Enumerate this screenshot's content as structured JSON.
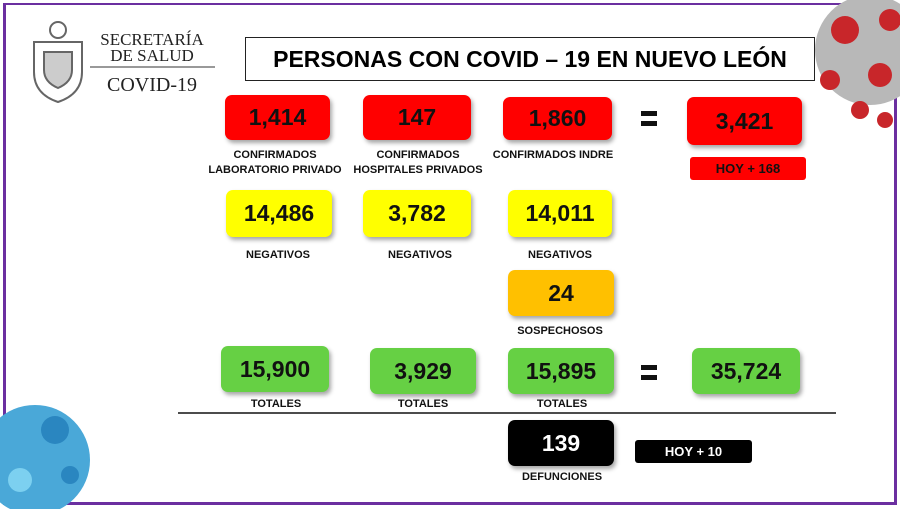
{
  "header": {
    "agency_lines": [
      "SECRETARÍA",
      "DE SALUD"
    ],
    "program": "COVID-19",
    "title": "PERSONAS CON COVID – 19 EN NUEVO LEÓN"
  },
  "confirmed": [
    {
      "value": "1,414",
      "label": [
        "CONFIRMADOS",
        "LABORATORIO PRIVADO"
      ]
    },
    {
      "value": "147",
      "label": [
        "CONFIRMADOS",
        "HOSPITALES PRIVADOS"
      ]
    },
    {
      "value": "1,860",
      "label": [
        "CONFIRMADOS INDRE"
      ]
    }
  ],
  "confirmed_total": {
    "value": "3,421",
    "today": "HOY + 168"
  },
  "negatives": [
    {
      "value": "14,486",
      "label": "NEGATIVOS"
    },
    {
      "value": "3,782",
      "label": "NEGATIVOS"
    },
    {
      "value": "14,011",
      "label": "NEGATIVOS"
    }
  ],
  "suspects": {
    "value": "24",
    "label": "SOSPECHOSOS"
  },
  "totals": [
    {
      "value": "15,900",
      "label": "TOTALES"
    },
    {
      "value": "3,929",
      "label": "TOTALES"
    },
    {
      "value": "15,895",
      "label": "TOTALES"
    }
  ],
  "totals_sum": {
    "value": "35,724"
  },
  "deaths": {
    "value": "139",
    "label": "DEFUNCIONES",
    "today": "HOY + 10"
  }
}
